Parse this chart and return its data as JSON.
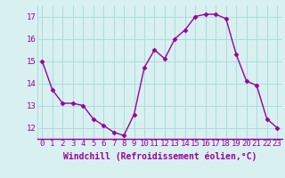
{
  "x": [
    0,
    1,
    2,
    3,
    4,
    5,
    6,
    7,
    8,
    9,
    10,
    11,
    12,
    13,
    14,
    15,
    16,
    17,
    18,
    19,
    20,
    21,
    22,
    23
  ],
  "y": [
    15.0,
    13.7,
    13.1,
    13.1,
    13.0,
    12.4,
    12.1,
    11.8,
    11.65,
    12.6,
    14.7,
    15.5,
    15.1,
    16.0,
    16.4,
    17.0,
    17.1,
    17.1,
    16.9,
    15.3,
    14.1,
    13.9,
    12.4,
    12.0
  ],
  "line_color": "#990099",
  "marker": "D",
  "marker_size": 2.5,
  "bg_color": "#d8f0f0",
  "grid_color": "#aadddd",
  "xlabel": "Windchill (Refroidissement éolien,°C)",
  "xlabel_color": "#990099",
  "xlabel_fontsize": 7,
  "tick_color": "#990099",
  "tick_fontsize": 6.5,
  "ylim": [
    11.5,
    17.5
  ],
  "yticks": [
    12,
    13,
    14,
    15,
    16,
    17
  ],
  "xticks": [
    0,
    1,
    2,
    3,
    4,
    5,
    6,
    7,
    8,
    9,
    10,
    11,
    12,
    13,
    14,
    15,
    16,
    17,
    18,
    19,
    20,
    21,
    22,
    23
  ]
}
